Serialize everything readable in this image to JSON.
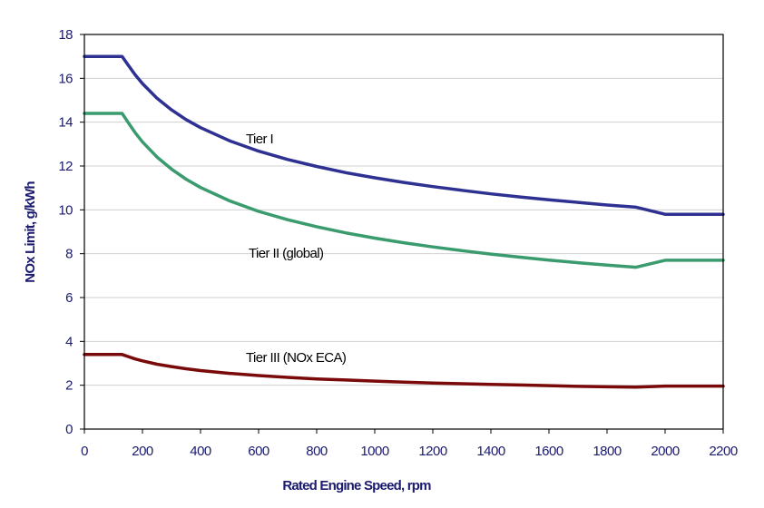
{
  "chart_data": {
    "type": "line",
    "title": "",
    "xlabel": "Rated Engine Speed, rpm",
    "ylabel": "NOx Limit, g/kWh",
    "xlim": [
      0,
      2200
    ],
    "ylim": [
      0,
      18
    ],
    "xticks": [
      0,
      200,
      400,
      600,
      800,
      1000,
      1200,
      1400,
      1600,
      1800,
      2000,
      2200
    ],
    "yticks": [
      0,
      2,
      4,
      6,
      8,
      10,
      12,
      14,
      16,
      18
    ],
    "grid": "horizontal",
    "legend": "none",
    "series": [
      {
        "name": "Tier I",
        "color": "#2e3192",
        "x": [
          0,
          130,
          150,
          175,
          200,
          250,
          300,
          350,
          400,
          500,
          600,
          700,
          800,
          900,
          1000,
          1100,
          1200,
          1300,
          1400,
          1500,
          1600,
          1700,
          1800,
          1900,
          2000,
          2200
        ],
        "y": [
          17.0,
          17.0,
          16.62,
          16.16,
          15.76,
          15.09,
          14.56,
          14.12,
          13.75,
          13.15,
          12.68,
          12.3,
          11.98,
          11.7,
          11.46,
          11.25,
          11.06,
          10.89,
          10.73,
          10.59,
          10.46,
          10.34,
          10.22,
          10.12,
          9.8,
          9.8
        ]
      },
      {
        "name": "Tier II (global)",
        "color": "#3a9b6e",
        "x": [
          0,
          130,
          150,
          175,
          200,
          250,
          300,
          350,
          400,
          500,
          600,
          700,
          800,
          900,
          1000,
          1100,
          1200,
          1300,
          1400,
          1500,
          1600,
          1700,
          1800,
          1900,
          2000,
          2200
        ],
        "y": [
          14.4,
          14.4,
          14.0,
          13.52,
          13.1,
          12.41,
          11.86,
          11.4,
          11.02,
          10.41,
          9.93,
          9.55,
          9.23,
          8.95,
          8.71,
          8.5,
          8.31,
          8.14,
          7.98,
          7.84,
          7.71,
          7.59,
          7.48,
          7.38,
          7.7,
          7.7
        ]
      },
      {
        "name": "Tier III (NOx ECA)",
        "color": "#7a0a0a",
        "x": [
          0,
          130,
          150,
          175,
          200,
          250,
          300,
          350,
          400,
          500,
          600,
          700,
          800,
          900,
          1000,
          1100,
          1200,
          1300,
          1400,
          1500,
          1600,
          1700,
          1800,
          1900,
          2000,
          2200
        ],
        "y": [
          3.4,
          3.4,
          3.31,
          3.2,
          3.11,
          2.96,
          2.85,
          2.75,
          2.67,
          2.54,
          2.44,
          2.36,
          2.29,
          2.24,
          2.19,
          2.14,
          2.1,
          2.07,
          2.04,
          2.01,
          1.98,
          1.95,
          1.93,
          1.91,
          1.96,
          1.96
        ]
      }
    ]
  }
}
